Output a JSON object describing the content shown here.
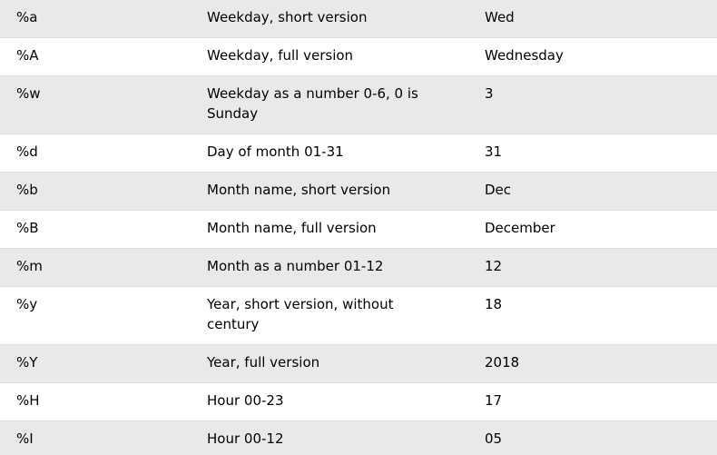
{
  "rows": [
    {
      "directive": "%a",
      "description": "Weekday, short version",
      "example": "Wed"
    },
    {
      "directive": "%A",
      "description": "Weekday, full version",
      "example": "Wednesday"
    },
    {
      "directive": "%w",
      "description": "Weekday as a number 0-6, 0 is Sunday",
      "example": "3"
    },
    {
      "directive": "%d",
      "description": "Day of month 01-31",
      "example": "31"
    },
    {
      "directive": "%b",
      "description": "Month name, short version",
      "example": "Dec"
    },
    {
      "directive": "%B",
      "description": "Month name, full version",
      "example": "December"
    },
    {
      "directive": "%m",
      "description": "Month as a number 01-12",
      "example": "12"
    },
    {
      "directive": "%y",
      "description": "Year, short version, without century",
      "example": "18"
    },
    {
      "directive": "%Y",
      "description": "Year, full version",
      "example": "2018"
    },
    {
      "directive": "%H",
      "description": "Hour 00-23",
      "example": "17"
    },
    {
      "directive": "%I",
      "description": "Hour 00-12",
      "example": "05"
    }
  ],
  "colors": {
    "stripe": "#e7e9eb",
    "background": "#ffffff",
    "border": "#dddddd"
  }
}
